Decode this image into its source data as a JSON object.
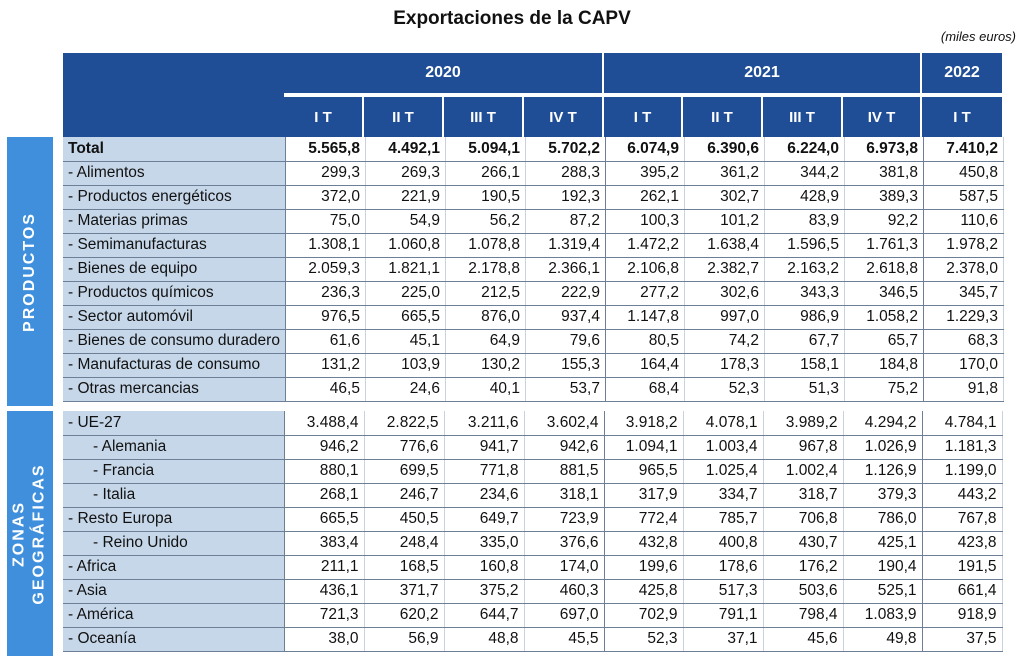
{
  "title": "Exportaciones de la CAPV",
  "unit": "(miles euros)",
  "years": [
    "2020",
    "2021",
    "2022"
  ],
  "quarters": [
    "I T",
    "II T",
    "III T",
    "IV T",
    "I T",
    "II T",
    "III T",
    "IV T",
    "I T"
  ],
  "sections": {
    "productos": "PRODUCTOS",
    "zonas_line1": "ZONAS",
    "zonas_line2": "GEOGRÁFICAS"
  },
  "productos_rows": [
    {
      "label": "Total",
      "values": [
        "5.565,8",
        "4.492,1",
        "5.094,1",
        "5.702,2",
        "6.074,9",
        "6.390,6",
        "6.224,0",
        "6.973,8",
        "7.410,2"
      ]
    },
    {
      "label": "- Alimentos",
      "values": [
        "299,3",
        "269,3",
        "266,1",
        "288,3",
        "395,2",
        "361,2",
        "344,2",
        "381,8",
        "450,8"
      ]
    },
    {
      "label": "- Productos energéticos",
      "values": [
        "372,0",
        "221,9",
        "190,5",
        "192,3",
        "262,1",
        "302,7",
        "428,9",
        "389,3",
        "587,5"
      ]
    },
    {
      "label": "- Materias primas",
      "values": [
        "75,0",
        "54,9",
        "56,2",
        "87,2",
        "100,3",
        "101,2",
        "83,9",
        "92,2",
        "110,6"
      ]
    },
    {
      "label": "- Semimanufacturas",
      "values": [
        "1.308,1",
        "1.060,8",
        "1.078,8",
        "1.319,4",
        "1.472,2",
        "1.638,4",
        "1.596,5",
        "1.761,3",
        "1.978,2"
      ]
    },
    {
      "label": "- Bienes de equipo",
      "values": [
        "2.059,3",
        "1.821,1",
        "2.178,8",
        "2.366,1",
        "2.106,8",
        "2.382,7",
        "2.163,2",
        "2.618,8",
        "2.378,0"
      ]
    },
    {
      "label": "- Productos químicos",
      "values": [
        "236,3",
        "225,0",
        "212,5",
        "222,9",
        "277,2",
        "302,6",
        "343,3",
        "346,5",
        "345,7"
      ]
    },
    {
      "label": "- Sector automóvil",
      "values": [
        "976,5",
        "665,5",
        "876,0",
        "937,4",
        "1.147,8",
        "997,0",
        "986,9",
        "1.058,2",
        "1.229,3"
      ]
    },
    {
      "label": "- Bienes de consumo duradero",
      "values": [
        "61,6",
        "45,1",
        "64,9",
        "79,6",
        "80,5",
        "74,2",
        "67,7",
        "65,7",
        "68,3"
      ]
    },
    {
      "label": "- Manufacturas de consumo",
      "values": [
        "131,2",
        "103,9",
        "130,2",
        "155,3",
        "164,4",
        "178,3",
        "158,1",
        "184,8",
        "170,0"
      ]
    },
    {
      "label": "- Otras mercancias",
      "values": [
        "46,5",
        "24,6",
        "40,1",
        "53,7",
        "68,4",
        "52,3",
        "51,3",
        "75,2",
        "91,8"
      ]
    }
  ],
  "zonas_rows": [
    {
      "label": "- UE-27",
      "values": [
        "3.488,4",
        "2.822,5",
        "3.211,6",
        "3.602,4",
        "3.918,2",
        "4.078,1",
        "3.989,2",
        "4.294,2",
        "4.784,1"
      ]
    },
    {
      "label": "- Alemania",
      "indent": true,
      "values": [
        "946,2",
        "776,6",
        "941,7",
        "942,6",
        "1.094,1",
        "1.003,4",
        "967,8",
        "1.026,9",
        "1.181,3"
      ]
    },
    {
      "label": "- Francia",
      "indent": true,
      "values": [
        "880,1",
        "699,5",
        "771,8",
        "881,5",
        "965,5",
        "1.025,4",
        "1.002,4",
        "1.126,9",
        "1.199,0"
      ]
    },
    {
      "label": "- Italia",
      "indent": true,
      "values": [
        "268,1",
        "246,7",
        "234,6",
        "318,1",
        "317,9",
        "334,7",
        "318,7",
        "379,3",
        "443,2"
      ]
    },
    {
      "label": "- Resto Europa",
      "values": [
        "665,5",
        "450,5",
        "649,7",
        "723,9",
        "772,4",
        "785,7",
        "706,8",
        "786,0",
        "767,8"
      ]
    },
    {
      "label": "- Reino Unido",
      "indent": true,
      "values": [
        "383,4",
        "248,4",
        "335,0",
        "376,6",
        "432,8",
        "400,8",
        "430,7",
        "425,1",
        "423,8"
      ]
    },
    {
      "label": "- Africa",
      "values": [
        "211,1",
        "168,5",
        "160,8",
        "174,0",
        "199,6",
        "178,6",
        "176,2",
        "190,4",
        "191,5"
      ]
    },
    {
      "label": "- Asia",
      "values": [
        "436,1",
        "371,7",
        "375,2",
        "460,3",
        "425,8",
        "517,3",
        "503,6",
        "525,1",
        "661,4"
      ]
    },
    {
      "label": "- América",
      "values": [
        "721,3",
        "620,2",
        "644,7",
        "697,0",
        "702,9",
        "791,1",
        "798,4",
        "1.083,9",
        "918,9"
      ]
    },
    {
      "label": "- Oceanía",
      "values": [
        "38,0",
        "56,9",
        "48,8",
        "45,5",
        "52,3",
        "37,1",
        "45,6",
        "49,8",
        "37,5"
      ]
    }
  ],
  "colors": {
    "header": "#1f4e96",
    "side": "#3f8fdc",
    "label_bg": "#c6d7e9"
  }
}
